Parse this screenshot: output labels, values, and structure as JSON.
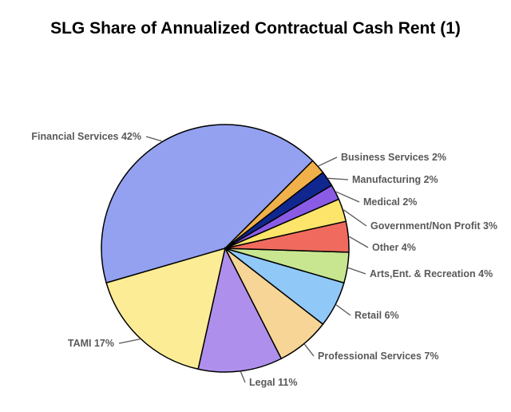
{
  "chart_data": {
    "type": "pie",
    "title": "SLG Share of Annualized Contractual Cash Rent (1)",
    "slices": [
      {
        "label": "Financial Services 42%",
        "name": "Financial Services",
        "value": 42,
        "color": "#93A1F0"
      },
      {
        "label": "TAMI 17%",
        "name": "TAMI",
        "value": 17,
        "color": "#FDEC96"
      },
      {
        "label": "Legal 11%",
        "name": "Legal",
        "value": 11,
        "color": "#AE90EC"
      },
      {
        "label": "Professional Services 7%",
        "name": "Professional Services",
        "value": 7,
        "color": "#F6D597"
      },
      {
        "label": "Retail 6%",
        "name": "Retail",
        "value": 6,
        "color": "#90C8F8"
      },
      {
        "label": "Arts,Ent. & Recreation 4%",
        "name": "Arts,Ent. & Recreation",
        "value": 4,
        "color": "#C8E590"
      },
      {
        "label": "Other 4%",
        "name": "Other",
        "value": 4,
        "color": "#F06B5E"
      },
      {
        "label": "Government/Non Profit 3%",
        "name": "Government/Non Profit",
        "value": 3,
        "color": "#FCE56A"
      },
      {
        "label": "Medical 2%",
        "name": "Medical",
        "value": 2,
        "color": "#8A5CE6"
      },
      {
        "label": "Manufacturing 2%",
        "name": "Manufacturing",
        "value": 2,
        "color": "#10278F"
      },
      {
        "label": "Business Services 2%",
        "name": "Business Services",
        "value": 2,
        "color": "#F0B04A"
      }
    ]
  }
}
